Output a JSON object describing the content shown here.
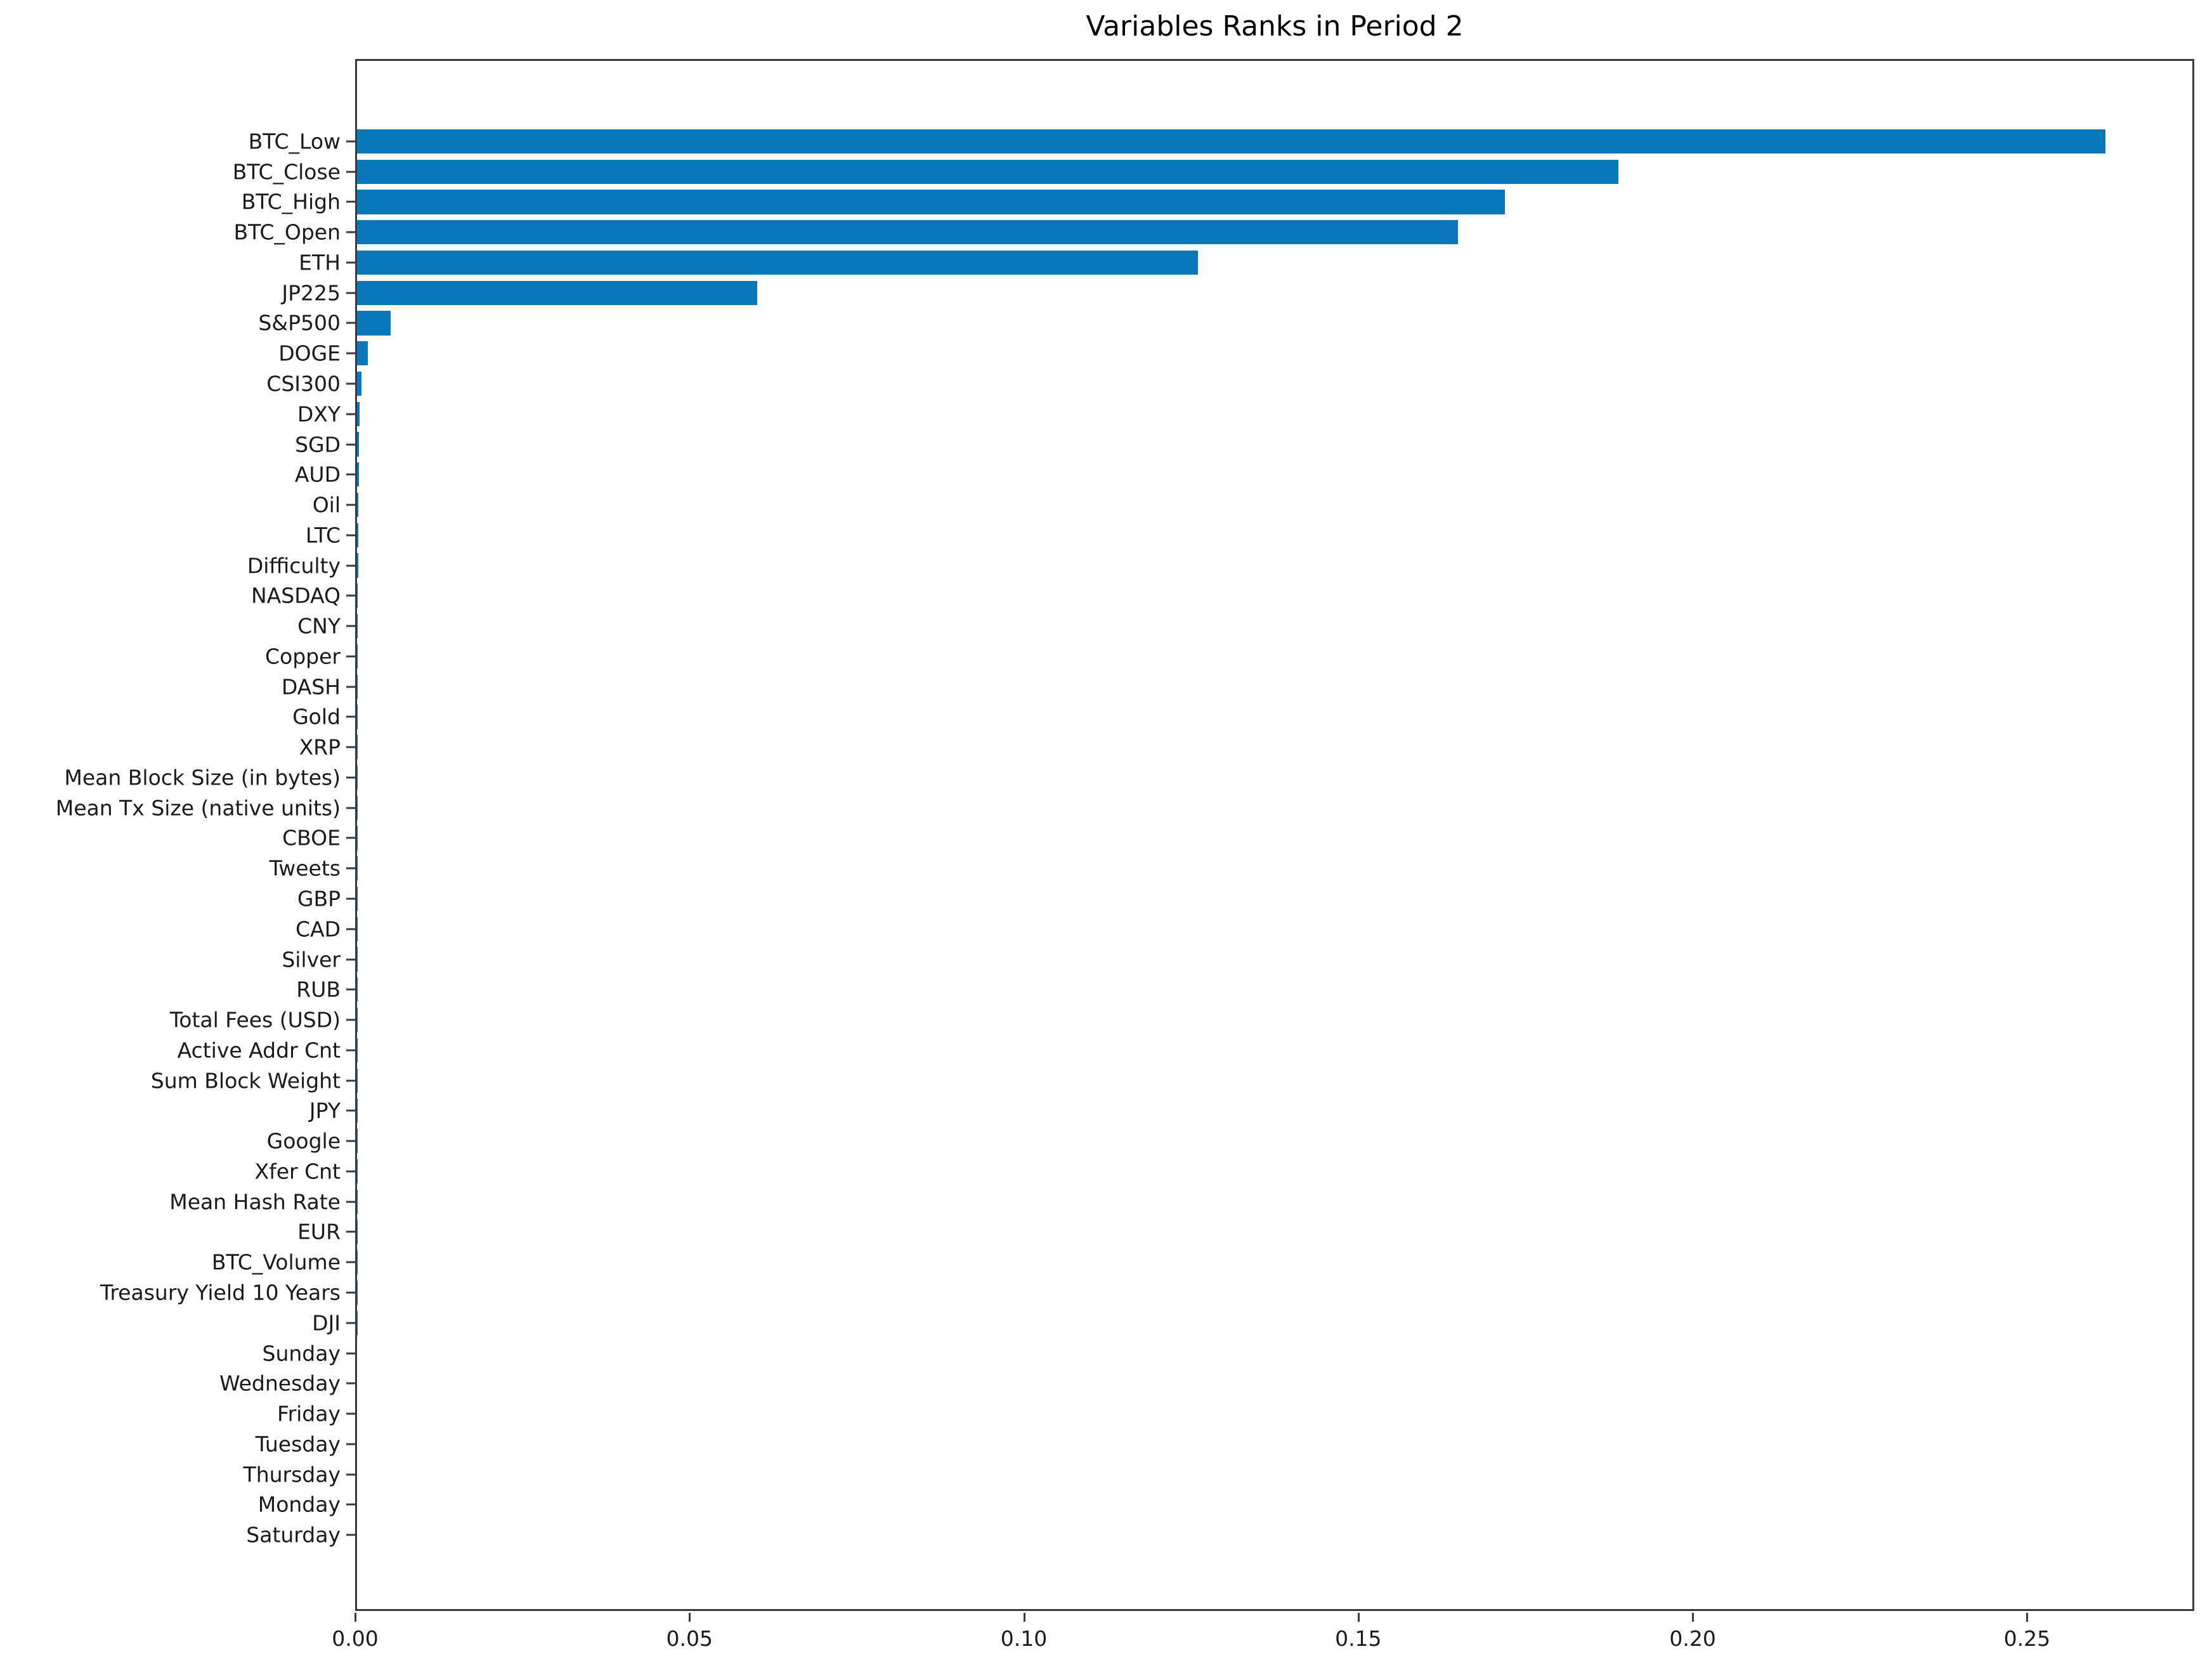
{
  "figure": {
    "title": "Variables Ranks in Period 2"
  },
  "colors": {
    "bar": "#0b76b8",
    "axis": "#3a3a3a",
    "text": "#1a1a1a"
  },
  "chart_data": {
    "type": "bar",
    "orientation": "horizontal",
    "title": "Variables Ranks in Period 2",
    "xlabel": "",
    "ylabel": "",
    "grid": false,
    "legend": null,
    "xlim": [
      0,
      0.275
    ],
    "xticks": [
      0.0,
      0.05,
      0.1,
      0.15,
      0.2,
      0.25
    ],
    "xtick_labels": [
      "0.00",
      "0.05",
      "0.10",
      "0.15",
      "0.20",
      "0.25"
    ],
    "categories": [
      "BTC_Low",
      "BTC_Close",
      "BTC_High",
      "BTC_Open",
      "ETH",
      "JP225",
      "S&P500",
      "DOGE",
      "CSI300",
      "DXY",
      "SGD",
      "AUD",
      "Oil",
      "LTC",
      "Difficulty",
      "NASDAQ",
      "CNY",
      "Copper",
      "DASH",
      "Gold",
      "XRP",
      "Mean Block Size (in bytes)",
      "Mean Tx Size (native units)",
      "CBOE",
      "Tweets",
      "GBP",
      "CAD",
      "Silver",
      "RUB",
      "Total Fees (USD)",
      "Active Addr Cnt",
      "Sum Block Weight",
      "JPY",
      "Google",
      "Xfer Cnt",
      "Mean Hash Rate",
      "EUR",
      "BTC_Volume",
      "Treasury Yield 10 Years",
      "DJI",
      "Sunday",
      "Wednesday",
      "Friday",
      "Tuesday",
      "Thursday",
      "Monday",
      "Saturday"
    ],
    "values": [
      0.262,
      0.189,
      0.172,
      0.165,
      0.126,
      0.06,
      0.005,
      0.0016,
      0.0007,
      0.0004,
      0.0003,
      0.0003,
      0.0002,
      0.0002,
      0.00015,
      0.00012,
      0.0001,
      0.0001,
      9e-05,
      8e-05,
      7e-05,
      6e-05,
      6e-05,
      5e-05,
      5e-05,
      4e-05,
      4e-05,
      3e-05,
      3e-05,
      3e-05,
      2e-05,
      2e-05,
      2e-05,
      2e-05,
      1e-05,
      1e-05,
      1e-05,
      1e-05,
      1e-05,
      1e-05,
      5e-06,
      5e-06,
      4e-06,
      4e-06,
      3e-06,
      2e-06,
      1e-06
    ]
  }
}
